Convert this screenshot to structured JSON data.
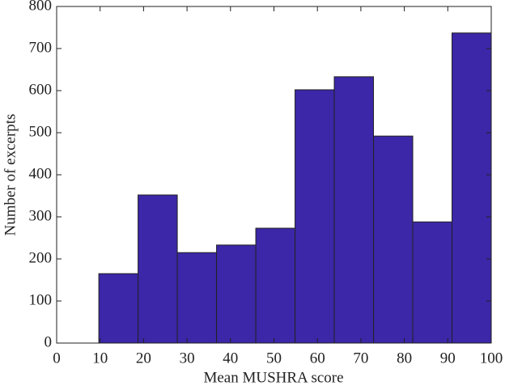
{
  "chart_data": {
    "type": "histogram",
    "x_label": "Mean MUSHRA score",
    "y_label": "Number of excerpts",
    "bins": [
      9.7,
      18.73,
      27.76,
      36.79,
      45.82,
      54.85,
      63.88,
      72.91,
      81.94,
      90.97,
      100
    ],
    "values": [
      165,
      352,
      215,
      233,
      273,
      602,
      633,
      492,
      288,
      737
    ],
    "color": "#3b27a7",
    "xlim": [
      0,
      100
    ],
    "xticks": [
      0,
      10,
      20,
      30,
      40,
      50,
      60,
      70,
      80,
      90,
      100
    ],
    "ylim": [
      0,
      800
    ],
    "yticks": [
      0,
      100,
      200,
      300,
      400,
      500,
      600,
      700,
      800
    ]
  }
}
